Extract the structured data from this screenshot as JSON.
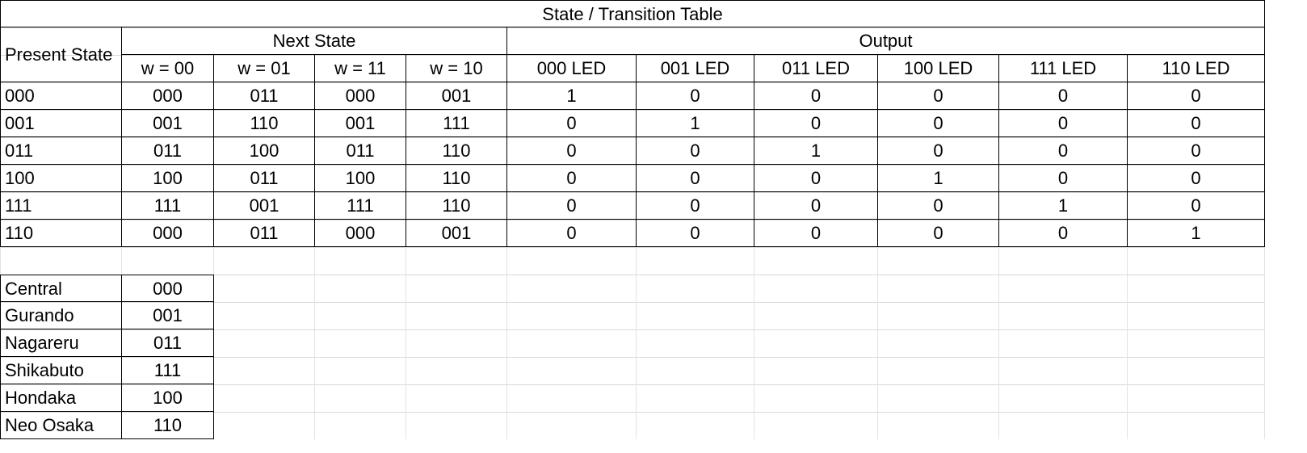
{
  "title": "State / Transition Table",
  "header": {
    "present_state": "Present State",
    "next_state": "Next State",
    "output": "Output",
    "next_cols": [
      "w = 00",
      "w = 01",
      "w = 11",
      "w = 10"
    ],
    "output_cols": [
      "000 LED",
      "001 LED",
      "011 LED",
      "100 LED",
      "111 LED",
      "110 LED"
    ]
  },
  "rows": [
    {
      "state": "000",
      "next": [
        "000",
        "011",
        "000",
        "001"
      ],
      "out": [
        "1",
        "0",
        "0",
        "0",
        "0",
        "0"
      ]
    },
    {
      "state": "001",
      "next": [
        "001",
        "110",
        "001",
        "111"
      ],
      "out": [
        "0",
        "1",
        "0",
        "0",
        "0",
        "0"
      ]
    },
    {
      "state": "011",
      "next": [
        "011",
        "100",
        "011",
        "110"
      ],
      "out": [
        "0",
        "0",
        "1",
        "0",
        "0",
        "0"
      ]
    },
    {
      "state": "100",
      "next": [
        "100",
        "011",
        "100",
        "110"
      ],
      "out": [
        "0",
        "0",
        "0",
        "1",
        "0",
        "0"
      ]
    },
    {
      "state": "111",
      "next": [
        "111",
        "001",
        "111",
        "110"
      ],
      "out": [
        "0",
        "0",
        "0",
        "0",
        "1",
        "0"
      ]
    },
    {
      "state": "110",
      "next": [
        "000",
        "011",
        "000",
        "001"
      ],
      "out": [
        "0",
        "0",
        "0",
        "0",
        "0",
        "1"
      ]
    }
  ],
  "legend": [
    {
      "name": "Central",
      "code": "000"
    },
    {
      "name": "Gurando",
      "code": "001"
    },
    {
      "name": "Nagareru",
      "code": "011"
    },
    {
      "name": "Shikabuto",
      "code": "111"
    },
    {
      "name": "Hondaka",
      "code": "100"
    },
    {
      "name": "Neo Osaka",
      "code": "110"
    }
  ]
}
